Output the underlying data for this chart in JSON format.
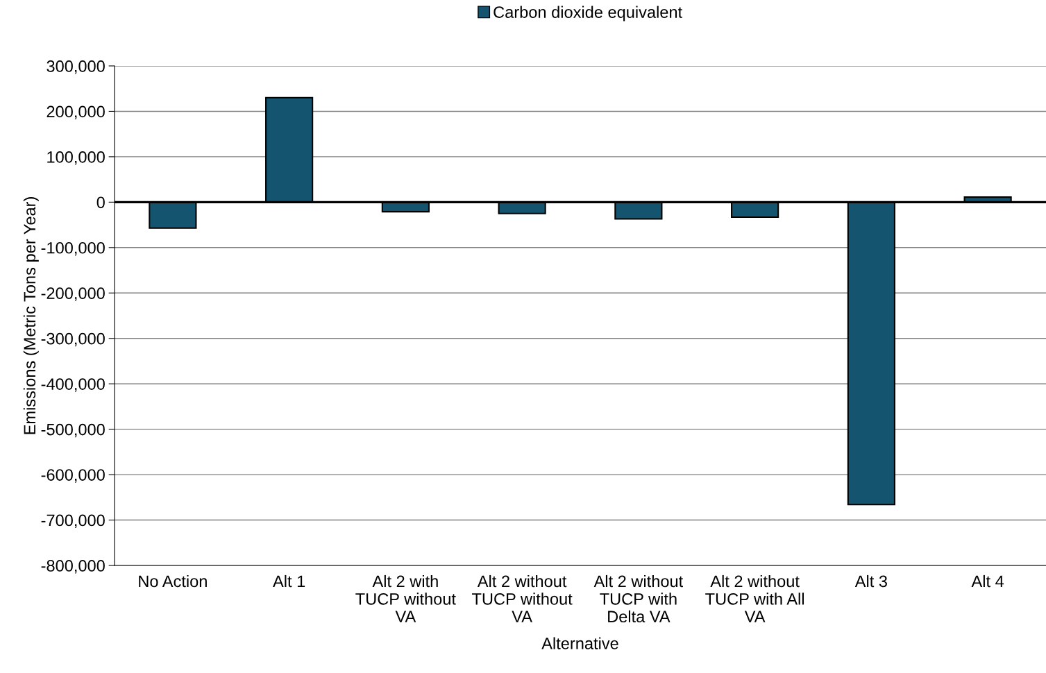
{
  "chart_data": {
    "type": "bar",
    "xlabel": "Alternative",
    "ylabel": "Emissions (Metric Tons per Year)",
    "categories": [
      "No Action",
      "Alt 1",
      "Alt 2 with\nTUCP without\nVA",
      "Alt 2 without\nTUCP without\nVA",
      "Alt 2 without\nTUCP with\nDelta VA",
      "Alt 2 without\nTUCP with All\nVA",
      "Alt 3",
      "Alt 4"
    ],
    "series": [
      {
        "name": "Carbon dioxide equivalent",
        "color": "#14546f",
        "values": [
          -57000,
          230000,
          -21000,
          -25000,
          -37000,
          -33000,
          -666000,
          11000
        ]
      }
    ],
    "ylim": [
      -800000,
      300000
    ],
    "yticks": [
      {
        "value": -800000,
        "label": "-800,000"
      },
      {
        "value": -700000,
        "label": "-700,000"
      },
      {
        "value": -600000,
        "label": "-600,000"
      },
      {
        "value": -500000,
        "label": "-500,000"
      },
      {
        "value": -400000,
        "label": "-400,000"
      },
      {
        "value": -300000,
        "label": "-300,000"
      },
      {
        "value": -200000,
        "label": "-200,000"
      },
      {
        "value": -100000,
        "label": "-100,000"
      },
      {
        "value": 0,
        "label": "0"
      },
      {
        "value": 100000,
        "label": "100,000"
      },
      {
        "value": 200000,
        "label": "200,000"
      },
      {
        "value": 300000,
        "label": "300,000"
      }
    ],
    "ref_lines": [
      {
        "axis": "y",
        "value": 0,
        "color": "#000000"
      }
    ],
    "grid": "y",
    "legend": "top"
  }
}
